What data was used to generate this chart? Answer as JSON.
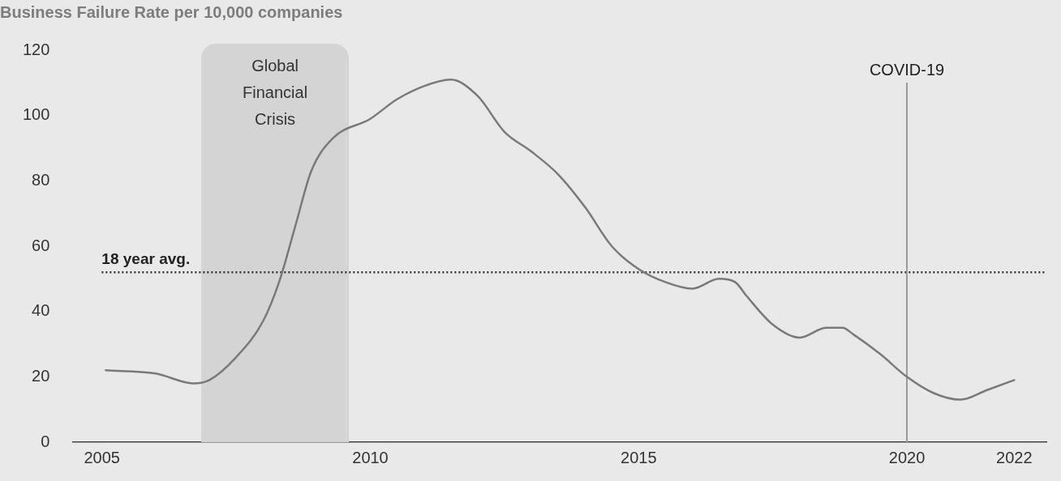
{
  "chart_data": {
    "type": "line",
    "title": "Business Failure Rate per 10,000 companies",
    "x": [
      2005.07,
      2006,
      2006.7,
      2007,
      2007.5,
      2008,
      2008.3,
      2008.6,
      2008.9,
      2009.3,
      2010,
      2010.5,
      2011,
      2011.5,
      2012,
      2012.5,
      2013,
      2013.5,
      2014,
      2014.5,
      2015,
      2015.5,
      2016,
      2016.5,
      2016.8,
      2017,
      2017.5,
      2018,
      2018.5,
      2018.8,
      2019,
      2019.5,
      2020,
      2020.5,
      2021,
      2021.5,
      2022
    ],
    "series": [
      {
        "color": "#7a7a7a",
        "values": [
          22,
          21,
          18,
          19,
          26,
          37,
          49,
          66,
          83,
          93,
          99,
          105,
          109,
          111,
          106,
          95,
          89,
          82,
          72,
          60,
          53,
          49,
          47,
          50,
          49,
          45,
          36,
          32,
          35,
          35,
          33,
          27,
          20,
          15,
          13,
          16,
          19
        ]
      }
    ],
    "xlim": [
      2004.45,
      2022.6
    ],
    "xticks": [
      2005,
      2010,
      2015,
      2020,
      2022
    ],
    "ylim": [
      0,
      120
    ],
    "yticks": [
      0,
      20,
      40,
      60,
      80,
      100,
      120
    ],
    "grid": false,
    "legend": false,
    "marker": "none",
    "line_style": "solid",
    "ref_lines": [
      {
        "axis": "y",
        "value": 52,
        "label": "18 year avg.",
        "color": "#333333",
        "line_style": "dotted"
      },
      {
        "axis": "x",
        "value": 2020,
        "label": "COVID-19",
        "color": "#9a9a9a",
        "line_style": "solid"
      }
    ],
    "bands": [
      {
        "axis": "x",
        "from": 2006.85,
        "to": 2009.6,
        "label": "Global Financial Crisis",
        "color": "#d4d4d4"
      }
    ]
  }
}
